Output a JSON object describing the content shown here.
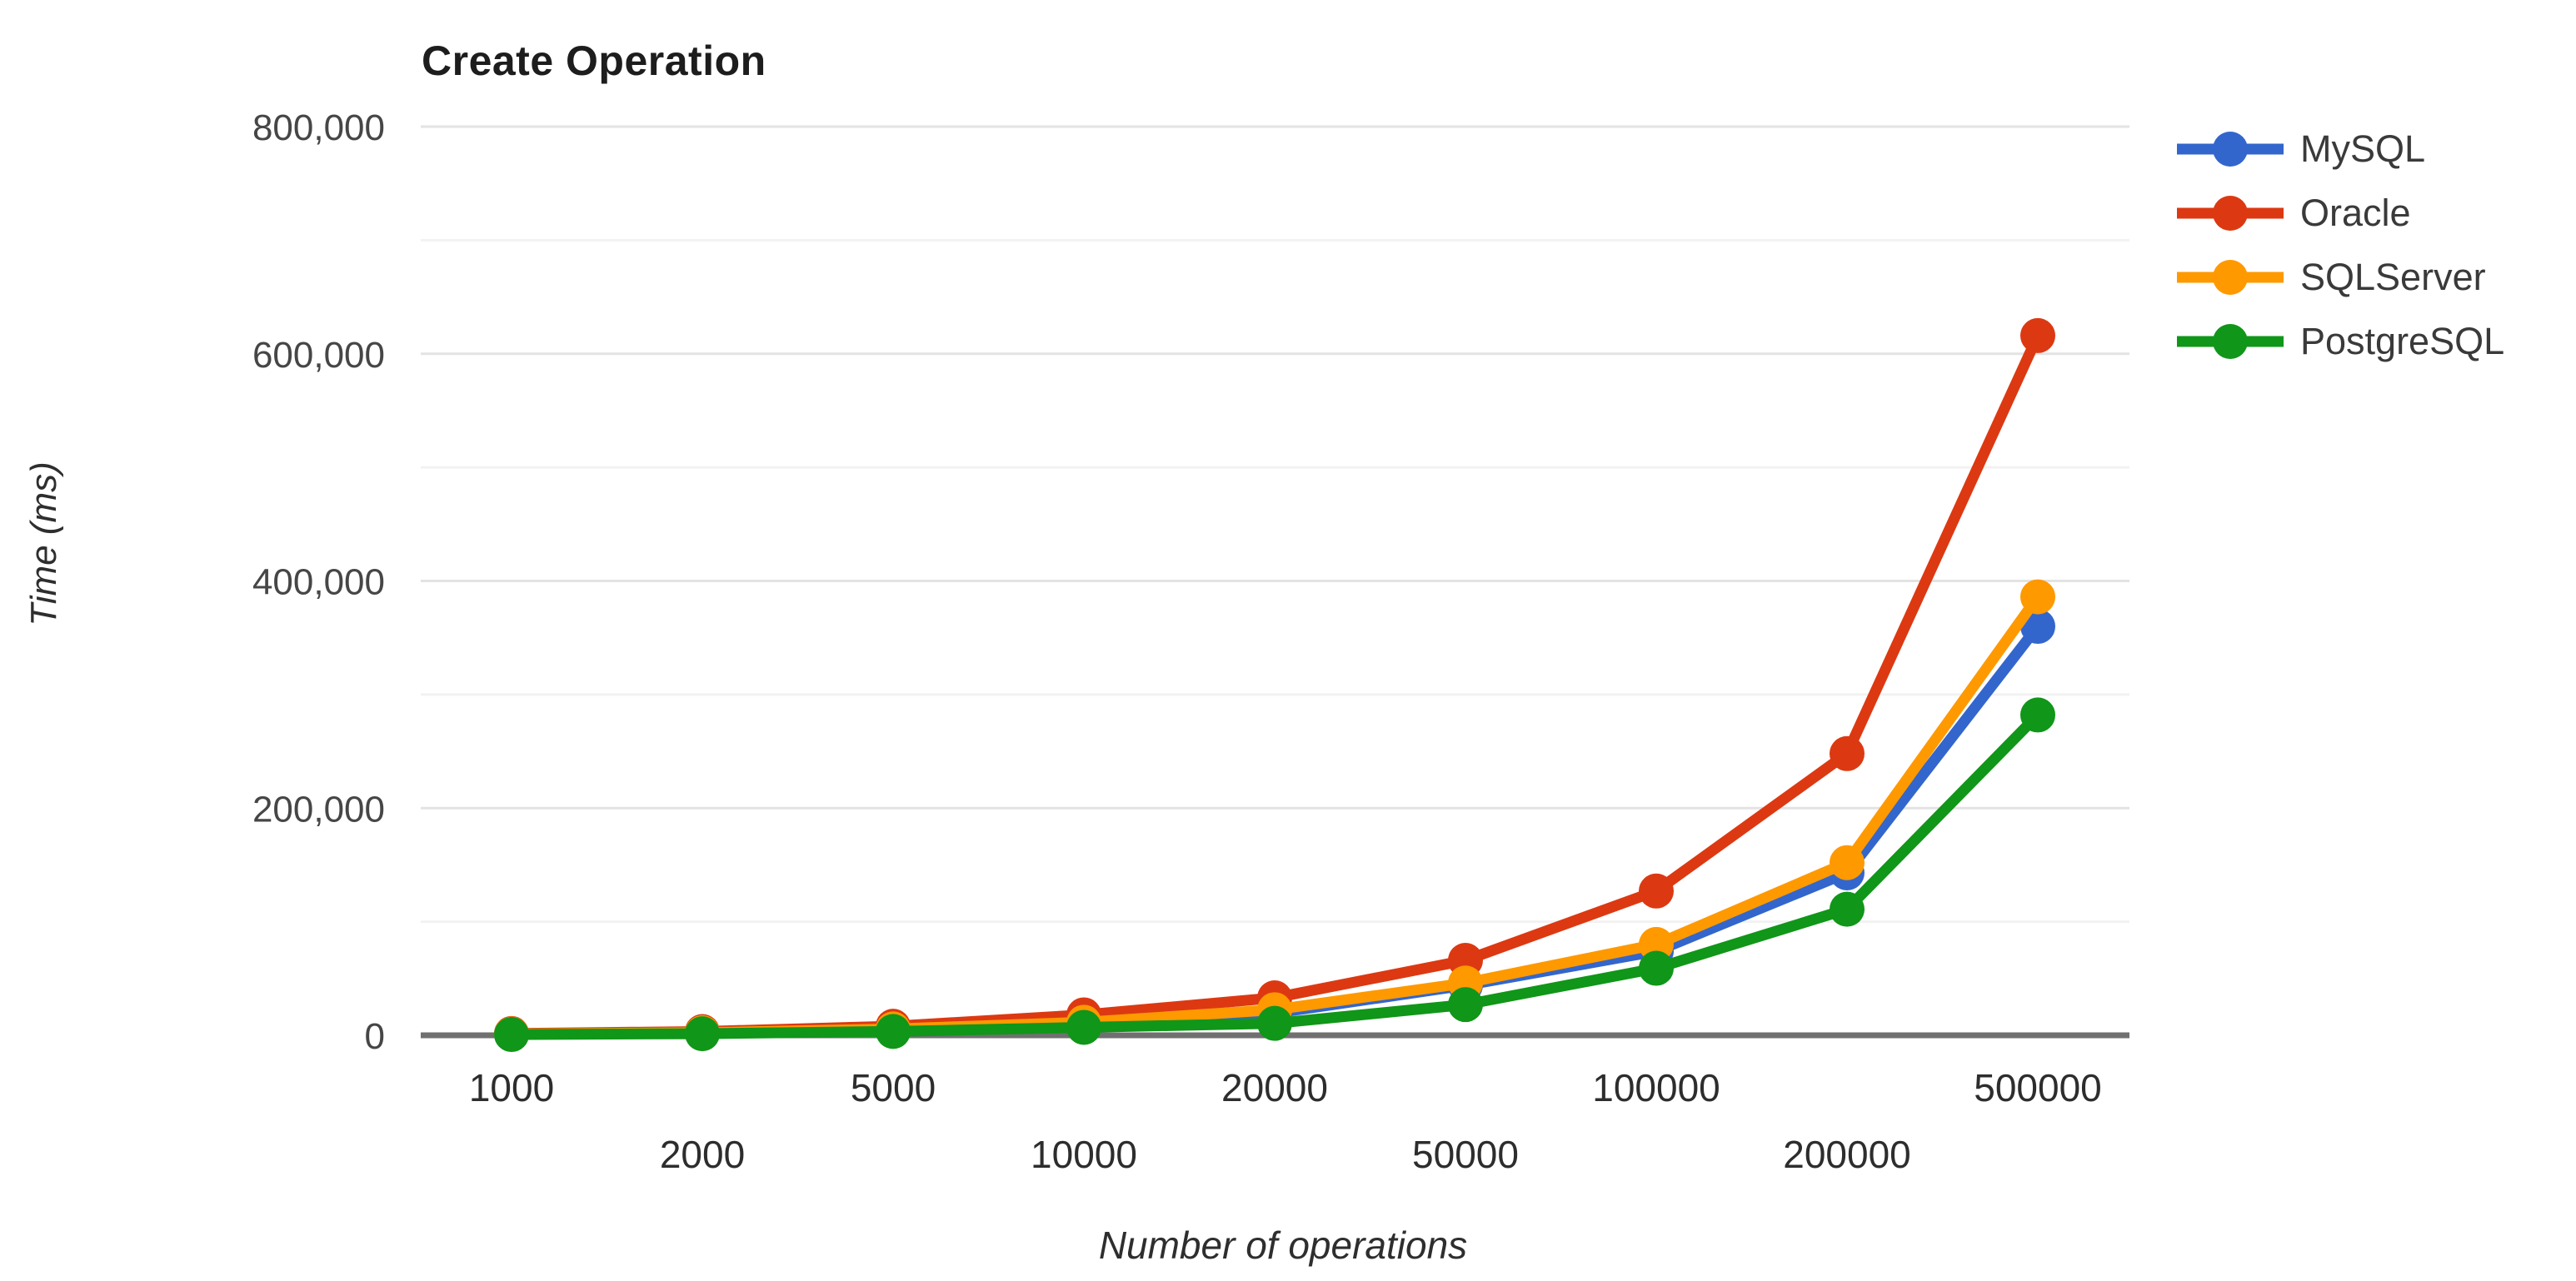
{
  "page": {
    "background": "#ffffff"
  },
  "chart_data": {
    "type": "line",
    "title": "Create Operation",
    "xlabel": "Number of operations",
    "ylabel": "Time (ms)",
    "categories": [
      "1000",
      "2000",
      "5000",
      "10000",
      "20000",
      "50000",
      "100000",
      "200000",
      "500000"
    ],
    "yticks": [
      "0",
      "200,000",
      "400,000",
      "600,000",
      "800,000"
    ],
    "ylim": [
      0,
      800000
    ],
    "y_major_step": 200000,
    "y_minor_step": 100000,
    "grid": "on",
    "legend_position": "right",
    "axis_colors": {
      "baseline": "#707070",
      "major_grid": "#e3e3e3",
      "minor_grid": "#f2f2f2"
    },
    "series": [
      {
        "name": "MySQL",
        "color": "#3366CC",
        "values": [
          900,
          1900,
          4600,
          9500,
          19500,
          44000,
          74000,
          143000,
          360000
        ]
      },
      {
        "name": "Oracle",
        "color": "#DC3912",
        "values": [
          1600,
          3300,
          8000,
          18000,
          33000,
          66000,
          127000,
          248000,
          616000
        ]
      },
      {
        "name": "SQLServer",
        "color": "#FF9900",
        "values": [
          1100,
          2300,
          5600,
          11500,
          22500,
          46000,
          80000,
          152000,
          386000
        ]
      },
      {
        "name": "PostgreSQL",
        "color": "#109618",
        "values": [
          700,
          1400,
          3400,
          7000,
          10500,
          27000,
          59000,
          111000,
          282000
        ]
      }
    ]
  }
}
